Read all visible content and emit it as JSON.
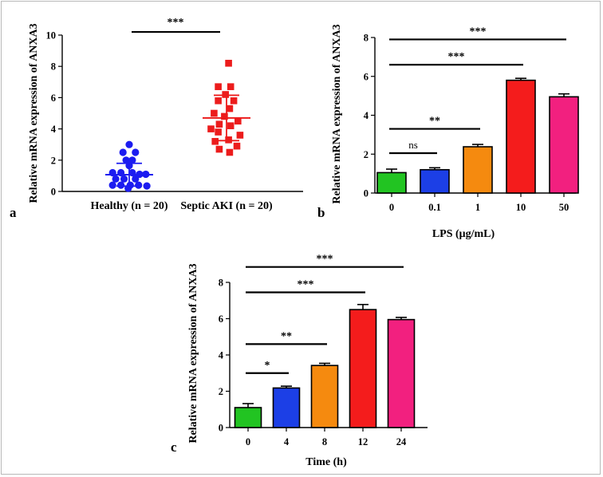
{
  "chart_data": [
    {
      "type": "scatter",
      "panel_label": "a",
      "ylabel": "Relative mRNA expression of ANXA3",
      "ylim": [
        0,
        10
      ],
      "yticks": [
        "0",
        "2",
        "4",
        "6",
        "8",
        "10"
      ],
      "categories": [
        "Healthy (n = 20)",
        "Septic AKI (n = 20)"
      ],
      "series": [
        {
          "name": "Healthy (n = 20)",
          "color": "#1c1cf0",
          "marker": "circle",
          "mean": 1.07,
          "sd": 0.73,
          "points": [
            {
              "o": 0.0,
              "v": 3.0
            },
            {
              "o": -0.3,
              "v": 2.5
            },
            {
              "o": 0.3,
              "v": 2.5
            },
            {
              "o": -0.15,
              "v": 2.0
            },
            {
              "o": 0.15,
              "v": 2.0
            },
            {
              "o": 0.0,
              "v": 1.65
            },
            {
              "o": -0.8,
              "v": 1.2
            },
            {
              "o": -0.4,
              "v": 1.2
            },
            {
              "o": 0.15,
              "v": 1.2
            },
            {
              "o": 0.5,
              "v": 1.1
            },
            {
              "o": 0.8,
              "v": 1.1
            },
            {
              "o": -0.65,
              "v": 0.8
            },
            {
              "o": -0.25,
              "v": 0.8
            },
            {
              "o": 0.3,
              "v": 0.8
            },
            {
              "o": -0.8,
              "v": 0.4
            },
            {
              "o": -0.4,
              "v": 0.4
            },
            {
              "o": 0.05,
              "v": 0.4
            },
            {
              "o": 0.45,
              "v": 0.4
            },
            {
              "o": 0.85,
              "v": 0.35
            },
            {
              "o": -0.05,
              "v": 0.2
            }
          ]
        },
        {
          "name": "Septic AKI (n = 20)",
          "color": "#ec1c1c",
          "marker": "square",
          "mean": 4.7,
          "sd": 1.45,
          "points": [
            {
              "o": 0.1,
              "v": 8.2
            },
            {
              "o": -0.4,
              "v": 6.7
            },
            {
              "o": 0.2,
              "v": 6.7
            },
            {
              "o": -0.05,
              "v": 6.2
            },
            {
              "o": -0.4,
              "v": 5.8
            },
            {
              "o": 0.35,
              "v": 5.8
            },
            {
              "o": 0.15,
              "v": 5.3
            },
            {
              "o": -0.6,
              "v": 5.0
            },
            {
              "o": -0.1,
              "v": 4.8
            },
            {
              "o": 0.55,
              "v": 4.5
            },
            {
              "o": -0.35,
              "v": 4.3
            },
            {
              "o": 0.2,
              "v": 4.2
            },
            {
              "o": -0.75,
              "v": 4.0
            },
            {
              "o": 0.65,
              "v": 3.6
            },
            {
              "o": -0.4,
              "v": 3.8
            },
            {
              "o": -0.55,
              "v": 3.2
            },
            {
              "o": 0.1,
              "v": 3.3
            },
            {
              "o": 0.5,
              "v": 2.9
            },
            {
              "o": -0.35,
              "v": 2.7
            },
            {
              "o": 0.15,
              "v": 2.5
            }
          ]
        }
      ],
      "significance": [
        {
          "from": 0,
          "to": 1,
          "label": "***",
          "y": 10.1
        }
      ]
    },
    {
      "type": "bar",
      "panel_label": "b",
      "ylabel": "Relative mRNA expression of ANXA3",
      "xlabel": "LPS (μg/mL)",
      "ylim": [
        0,
        8
      ],
      "yticks": [
        "0",
        "2",
        "4",
        "6",
        "8"
      ],
      "categories": [
        "0",
        "0.1",
        "1",
        "10",
        "50"
      ],
      "values": [
        1.05,
        1.2,
        2.38,
        5.8,
        4.95
      ],
      "errors": [
        0.18,
        0.1,
        0.12,
        0.1,
        0.15
      ],
      "colors": [
        "#22c422",
        "#1c3fe6",
        "#f58a0f",
        "#f41c1c",
        "#f2207f"
      ],
      "significance": [
        {
          "from": 0,
          "to": 1,
          "label": "ns",
          "y": 2.05
        },
        {
          "from": 0,
          "to": 2,
          "label": "**",
          "y": 3.3
        },
        {
          "from": 0,
          "to": 3,
          "label": "***",
          "y": 6.6
        },
        {
          "from": 0,
          "to": 4,
          "label": "***",
          "y": 7.9
        }
      ]
    },
    {
      "type": "bar",
      "panel_label": "c",
      "ylabel": "Relative mRNA expression of ANXA3",
      "xlabel": "Time (h)",
      "ylim": [
        0,
        8
      ],
      "yticks": [
        "0",
        "2",
        "4",
        "6",
        "8"
      ],
      "categories": [
        "0",
        "4",
        "8",
        "12",
        "24"
      ],
      "values": [
        1.1,
        2.18,
        3.42,
        6.5,
        5.95
      ],
      "errors": [
        0.22,
        0.1,
        0.12,
        0.28,
        0.12
      ],
      "colors": [
        "#22c422",
        "#1c3fe6",
        "#f58a0f",
        "#f41c1c",
        "#f2207f"
      ],
      "significance": [
        {
          "from": 0,
          "to": 1,
          "label": "*",
          "y": 3.0
        },
        {
          "from": 0,
          "to": 2,
          "label": "**",
          "y": 4.6
        },
        {
          "from": 0,
          "to": 3,
          "label": "***",
          "y": 7.45
        },
        {
          "from": 0,
          "to": 4,
          "label": "***",
          "y": 8.85
        }
      ]
    }
  ]
}
